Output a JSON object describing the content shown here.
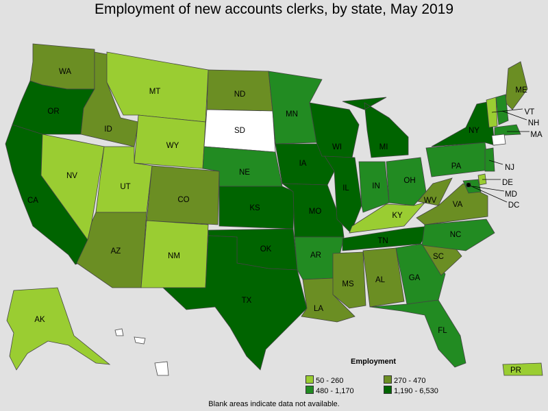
{
  "title": "Employment of new accounts clerks, by state, May 2019",
  "legend": {
    "title": "Employment",
    "bins": [
      {
        "label": "50 - 260",
        "color": "#9acd32"
      },
      {
        "label": "270 - 470",
        "color": "#6b8e23"
      },
      {
        "label": "480 - 1,170",
        "color": "#228b22"
      },
      {
        "label": "1,190 - 6,530",
        "color": "#006400"
      }
    ]
  },
  "note": "Blank areas indicate data not available.",
  "no_data_color": "#ffffff",
  "states": [
    {
      "abbr": "WA",
      "bin": 1
    },
    {
      "abbr": "OR",
      "bin": 3
    },
    {
      "abbr": "CA",
      "bin": 3
    },
    {
      "abbr": "ID",
      "bin": 1
    },
    {
      "abbr": "NV",
      "bin": 0
    },
    {
      "abbr": "MT",
      "bin": 0
    },
    {
      "abbr": "WY",
      "bin": 0
    },
    {
      "abbr": "UT",
      "bin": 0
    },
    {
      "abbr": "AZ",
      "bin": 1
    },
    {
      "abbr": "CO",
      "bin": 1
    },
    {
      "abbr": "NM",
      "bin": 0
    },
    {
      "abbr": "ND",
      "bin": 1
    },
    {
      "abbr": "SD",
      "bin": null
    },
    {
      "abbr": "NE",
      "bin": 2
    },
    {
      "abbr": "KS",
      "bin": 3
    },
    {
      "abbr": "OK",
      "bin": 3
    },
    {
      "abbr": "TX",
      "bin": 3
    },
    {
      "abbr": "MN",
      "bin": 2
    },
    {
      "abbr": "IA",
      "bin": 3
    },
    {
      "abbr": "MO",
      "bin": 3
    },
    {
      "abbr": "AR",
      "bin": 2
    },
    {
      "abbr": "LA",
      "bin": 1
    },
    {
      "abbr": "WI",
      "bin": 3
    },
    {
      "abbr": "IL",
      "bin": 3
    },
    {
      "abbr": "MS",
      "bin": 1
    },
    {
      "abbr": "MI",
      "bin": 3
    },
    {
      "abbr": "IN",
      "bin": 2
    },
    {
      "abbr": "OH",
      "bin": 2
    },
    {
      "abbr": "KY",
      "bin": 0
    },
    {
      "abbr": "TN",
      "bin": 3
    },
    {
      "abbr": "AL",
      "bin": 1
    },
    {
      "abbr": "GA",
      "bin": 2
    },
    {
      "abbr": "FL",
      "bin": 2
    },
    {
      "abbr": "SC",
      "bin": 1
    },
    {
      "abbr": "NC",
      "bin": 2
    },
    {
      "abbr": "VA",
      "bin": 1
    },
    {
      "abbr": "WV",
      "bin": 1
    },
    {
      "abbr": "PA",
      "bin": 2
    },
    {
      "abbr": "NY",
      "bin": 3
    },
    {
      "abbr": "ME",
      "bin": 1
    },
    {
      "abbr": "VT",
      "bin": 0
    },
    {
      "abbr": "NH",
      "bin": 2
    },
    {
      "abbr": "MA",
      "bin": 2
    },
    {
      "abbr": "CT",
      "bin": null
    },
    {
      "abbr": "NJ",
      "bin": 2
    },
    {
      "abbr": "DE",
      "bin": 0
    },
    {
      "abbr": "MD",
      "bin": 2
    },
    {
      "abbr": "DC",
      "bin": 3
    },
    {
      "abbr": "AK",
      "bin": 0
    },
    {
      "abbr": "HI",
      "bin": null
    },
    {
      "abbr": "PR",
      "bin": 0
    }
  ]
}
